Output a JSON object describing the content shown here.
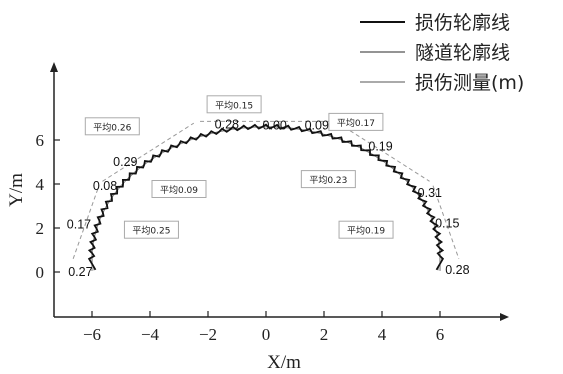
{
  "chart_data": {
    "type": "line",
    "xlabel": "X/m",
    "ylabel": "Y/m",
    "xlim": [
      -7,
      7.6
    ],
    "ylim": [
      -1.5,
      7.2
    ],
    "xticks": [
      -6,
      -4,
      -2,
      0,
      2,
      4,
      6
    ],
    "yticks": [
      0,
      2,
      4,
      6
    ],
    "grid": false,
    "legend_position": "top-right",
    "series": [
      {
        "name": "损伤轮廓线",
        "color": "#111111"
      },
      {
        "name": "隧道轮廓线",
        "color": "#555555"
      },
      {
        "name": "损伤测量(m)",
        "color": "#777777"
      }
    ],
    "tunnel_profile": {
      "arch_radius": 6.0,
      "arch_center": [
        0,
        0.6
      ],
      "wall_bottom_y": 0.05
    },
    "damage_labels": [
      {
        "text": "0.27",
        "x": -6.4,
        "y": 0.0
      },
      {
        "text": "0.17",
        "x": -6.45,
        "y": 2.15
      },
      {
        "text": "0.08",
        "x": -5.55,
        "y": 3.9
      },
      {
        "text": "0.29",
        "x": -4.85,
        "y": 5.0
      },
      {
        "text": "0.28",
        "x": -1.35,
        "y": 6.7
      },
      {
        "text": "0.00",
        "x": 0.3,
        "y": 6.65
      },
      {
        "text": "0.09",
        "x": 1.75,
        "y": 6.65
      },
      {
        "text": "0.19",
        "x": 3.95,
        "y": 5.7
      },
      {
        "text": "0.31",
        "x": 5.65,
        "y": 3.6
      },
      {
        "text": "0.15",
        "x": 6.25,
        "y": 2.2
      },
      {
        "text": "0.28",
        "x": 6.6,
        "y": 0.1
      }
    ],
    "averages": [
      {
        "text": "平均0.26",
        "x": -5.3,
        "y": 6.6
      },
      {
        "text": "平均0.15",
        "x": -1.1,
        "y": 7.6
      },
      {
        "text": "平均0.17",
        "x": 3.1,
        "y": 6.8
      },
      {
        "text": "平均0.09",
        "x": -3.0,
        "y": 3.75
      },
      {
        "text": "平均0.23",
        "x": 2.15,
        "y": 4.2
      },
      {
        "text": "平均0.25",
        "x": -3.95,
        "y": 1.9
      },
      {
        "text": "平均0.19",
        "x": 3.45,
        "y": 1.9
      }
    ]
  }
}
